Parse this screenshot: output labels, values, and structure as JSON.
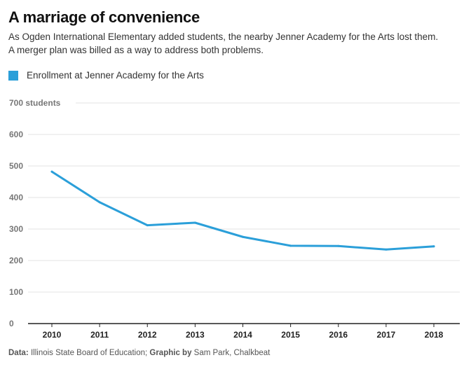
{
  "header": {
    "title": "A marriage of convenience",
    "subtitle_line1": "As Ogden International Elementary added students, the nearby Jenner Academy for the Arts lost them.",
    "subtitle_line2": "A merger plan was billed as a way to address both problems."
  },
  "legend": {
    "label": "Enrollment at Jenner Academy for the Arts",
    "color": "#2b9fd9"
  },
  "footer": {
    "data_label": "Data:",
    "data_source": "Illinois State Board of Education;",
    "graphic_label": "Graphic by",
    "graphic_author": "Sam Park, Chalkbeat"
  },
  "colors": {
    "line": "#2b9fd9",
    "grid": "#e3e3e3",
    "axis": "#222222",
    "tick_text": "#777777"
  },
  "chart_data": {
    "type": "line",
    "title": "A marriage of convenience",
    "xlabel": "",
    "ylabel": "",
    "x": [
      2010,
      2011,
      2012,
      2013,
      2014,
      2015,
      2016,
      2017,
      2018
    ],
    "series": [
      {
        "name": "Enrollment at Jenner Academy for the Arts",
        "values": [
          482,
          385,
          312,
          320,
          275,
          247,
          246,
          235,
          245
        ]
      }
    ],
    "ylim": [
      0,
      700
    ],
    "yticks": [
      0,
      100,
      200,
      300,
      400,
      500,
      600,
      700
    ],
    "ytick_labels": [
      "0",
      "100",
      "200",
      "300",
      "400",
      "500",
      "600",
      "700 students"
    ],
    "grid": true,
    "legend_position": "top-left"
  }
}
